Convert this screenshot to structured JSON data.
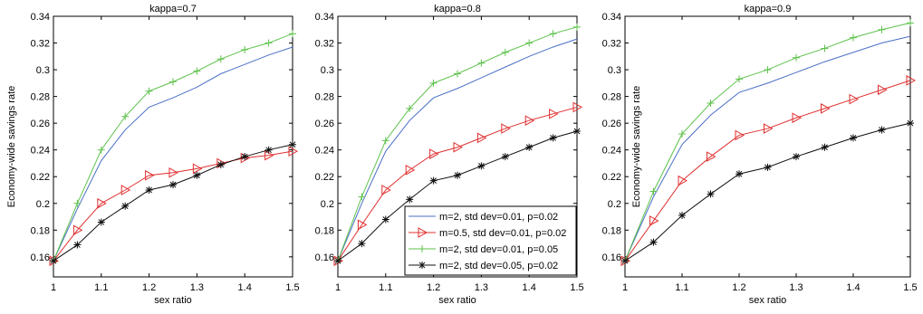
{
  "chart_data": [
    {
      "type": "line",
      "title": "kappa=0.7",
      "xlabel": "sex ratio",
      "ylabel": "Economy-wide savings rate",
      "xlim": [
        1,
        1.5
      ],
      "ylim": [
        0.145,
        0.34
      ],
      "xticks": [
        "1",
        "1.1",
        "1.2",
        "1.3",
        "1.4",
        "1.5"
      ],
      "yticks": [
        "0.16",
        "0.18",
        "0.2",
        "0.22",
        "0.24",
        "0.26",
        "0.28",
        "0.3",
        "0.32",
        "0.34"
      ],
      "grid": false,
      "x": [
        1,
        1.05,
        1.1,
        1.15,
        1.2,
        1.25,
        1.3,
        1.35,
        1.4,
        1.45,
        1.5
      ],
      "series": [
        {
          "name": "m=2, std dev=0.01, p=0.02",
          "color": "#4a6fc7",
          "marker": "none",
          "values": [
            0.157,
            0.196,
            0.232,
            0.255,
            0.272,
            0.279,
            0.287,
            0.297,
            0.304,
            0.311,
            0.317
          ]
        },
        {
          "name": "m=0.5, std dev=0.01, p=0.02",
          "color": "#e03030",
          "marker": "triangle-right",
          "values": [
            0.157,
            0.18,
            0.2,
            0.21,
            0.221,
            0.223,
            0.226,
            0.23,
            0.234,
            0.236,
            0.239
          ]
        },
        {
          "name": "m=2, std dev=0.01, p=0.05",
          "color": "#5dc24a",
          "marker": "plus",
          "values": [
            0.157,
            0.2,
            0.24,
            0.265,
            0.284,
            0.291,
            0.299,
            0.308,
            0.315,
            0.32,
            0.327
          ]
        },
        {
          "name": "m=2, std dev=0.05, p=0.02",
          "color": "#111111",
          "marker": "star",
          "values": [
            0.157,
            0.169,
            0.186,
            0.198,
            0.21,
            0.214,
            0.221,
            0.229,
            0.235,
            0.24,
            0.244
          ]
        }
      ]
    },
    {
      "type": "line",
      "title": "kappa=0.8",
      "xlabel": "sex ratio",
      "ylabel": "",
      "xlim": [
        1,
        1.5
      ],
      "ylim": [
        0.145,
        0.34
      ],
      "xticks": [
        "1",
        "1.1",
        "1.2",
        "1.3",
        "1.4",
        "1.5"
      ],
      "yticks": [
        "0.16",
        "0.18",
        "0.2",
        "0.22",
        "0.24",
        "0.26",
        "0.28",
        "0.3",
        "0.32",
        "0.34"
      ],
      "grid": false,
      "legend": "bottom-right",
      "x": [
        1,
        1.05,
        1.1,
        1.15,
        1.2,
        1.25,
        1.3,
        1.35,
        1.4,
        1.45,
        1.5
      ],
      "series": [
        {
          "name": "m=2, std dev=0.01, p=0.02",
          "color": "#4a6fc7",
          "marker": "none",
          "values": [
            0.157,
            0.2,
            0.239,
            0.262,
            0.279,
            0.286,
            0.294,
            0.302,
            0.31,
            0.317,
            0.323
          ]
        },
        {
          "name": "m=0.5, std dev=0.01, p=0.02",
          "color": "#e03030",
          "marker": "triangle-right",
          "values": [
            0.157,
            0.184,
            0.21,
            0.225,
            0.237,
            0.242,
            0.249,
            0.256,
            0.262,
            0.267,
            0.272
          ]
        },
        {
          "name": "m=2, std dev=0.01, p=0.05",
          "color": "#5dc24a",
          "marker": "plus",
          "values": [
            0.157,
            0.205,
            0.247,
            0.271,
            0.29,
            0.297,
            0.305,
            0.313,
            0.32,
            0.327,
            0.332
          ]
        },
        {
          "name": "m=2, std dev=0.05, p=0.02",
          "color": "#111111",
          "marker": "star",
          "values": [
            0.157,
            0.17,
            0.188,
            0.203,
            0.217,
            0.221,
            0.228,
            0.235,
            0.242,
            0.249,
            0.254
          ]
        }
      ]
    },
    {
      "type": "line",
      "title": "kappa=0.9",
      "xlabel": "sex ratio",
      "ylabel": "Economy-wide savings rate",
      "xlim": [
        1,
        1.5
      ],
      "ylim": [
        0.145,
        0.34
      ],
      "xticks": [
        "1",
        "1.1",
        "1.2",
        "1.3",
        "1.4",
        "1.5"
      ],
      "yticks": [
        "0.16",
        "0.18",
        "0.2",
        "0.22",
        "0.24",
        "0.26",
        "0.28",
        "0.3",
        "0.32",
        "0.34"
      ],
      "grid": false,
      "x": [
        1,
        1.05,
        1.1,
        1.15,
        1.2,
        1.25,
        1.3,
        1.35,
        1.4,
        1.45,
        1.5
      ],
      "series": [
        {
          "name": "m=2, std dev=0.01, p=0.02",
          "color": "#4a6fc7",
          "marker": "none",
          "values": [
            0.157,
            0.205,
            0.244,
            0.266,
            0.283,
            0.29,
            0.298,
            0.306,
            0.313,
            0.32,
            0.325
          ]
        },
        {
          "name": "m=0.5, std dev=0.01, p=0.02",
          "color": "#e03030",
          "marker": "triangle-right",
          "values": [
            0.157,
            0.187,
            0.217,
            0.235,
            0.251,
            0.256,
            0.264,
            0.271,
            0.278,
            0.285,
            0.292
          ]
        },
        {
          "name": "m=2, std dev=0.01, p=0.05",
          "color": "#5dc24a",
          "marker": "plus",
          "values": [
            0.157,
            0.209,
            0.252,
            0.275,
            0.293,
            0.3,
            0.309,
            0.316,
            0.324,
            0.33,
            0.335
          ]
        },
        {
          "name": "m=2, std dev=0.05, p=0.02",
          "color": "#111111",
          "marker": "star",
          "values": [
            0.157,
            0.171,
            0.191,
            0.207,
            0.222,
            0.227,
            0.235,
            0.242,
            0.249,
            0.255,
            0.26
          ]
        }
      ]
    }
  ]
}
